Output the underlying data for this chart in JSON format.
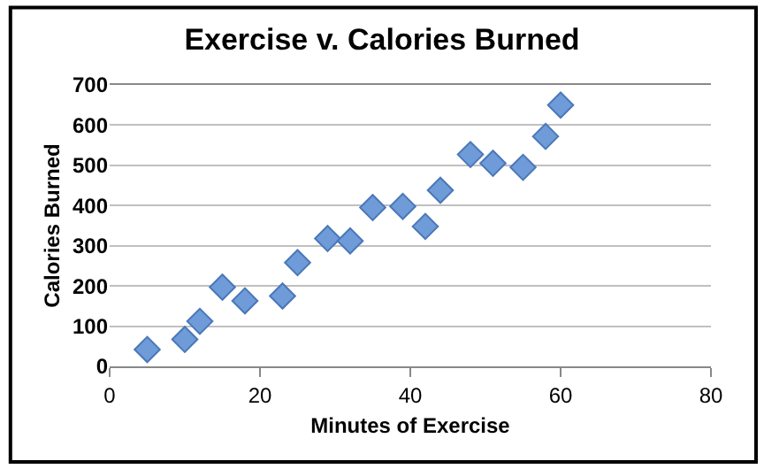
{
  "chart_data": {
    "type": "scatter",
    "title": "Exercise v. Calories Burned",
    "xlabel": "Minutes of Exercise",
    "ylabel": "Calories Burned",
    "x": [
      5,
      10,
      12,
      15,
      18,
      23,
      25,
      29,
      32,
      35,
      39,
      42,
      44,
      48,
      51,
      55,
      58,
      60
    ],
    "series": [
      {
        "color": "#6f9bd8",
        "values": [
          42,
          67,
          112,
          197,
          163,
          175,
          258,
          318,
          312,
          395,
          398,
          348,
          438,
          527,
          505,
          495,
          572,
          650
        ]
      }
    ],
    "xlim": [
      0,
      80
    ],
    "xticks": [
      0,
      20,
      40,
      60,
      80
    ],
    "ylim": [
      0,
      700
    ],
    "yticks": [
      0,
      100,
      200,
      300,
      400,
      500,
      600,
      700
    ],
    "grid": "y",
    "marker": "diamond"
  }
}
